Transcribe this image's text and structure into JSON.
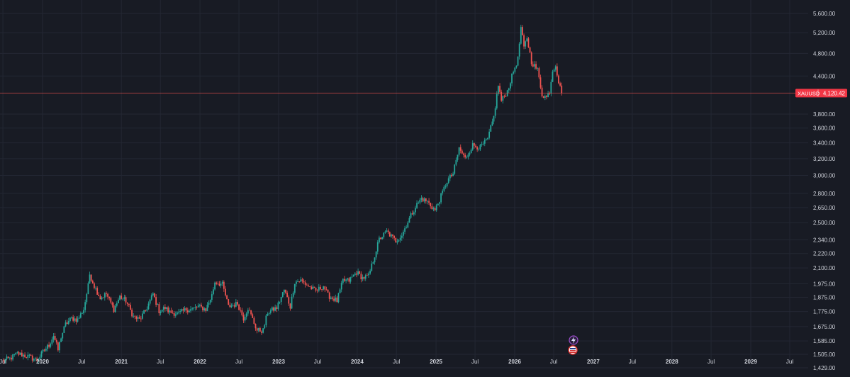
{
  "colors": {
    "background": "#181b24",
    "grid": "#232733",
    "up": "#26a69a",
    "down": "#ef5350",
    "price_line": "#ef5350",
    "axis_text": "#d1d4dc",
    "badge_bg": "#f23645",
    "badge_text": "#ffffff"
  },
  "icons": [
    "flash-icon",
    "flag-icon"
  ],
  "chart_data": {
    "type": "candlestick",
    "symbol_badge": "XAUUSD",
    "last_price": 4120.42,
    "last_price_label": "4,120.42",
    "y_scale": "log",
    "ylim": [
      1395,
      5640
    ],
    "y_ticks": [
      {
        "value": 5600,
        "label": "5,600.00"
      },
      {
        "value": 5200,
        "label": "5,200.00"
      },
      {
        "value": 4800,
        "label": "4,800.00"
      },
      {
        "value": 4400,
        "label": "4,400.00"
      },
      {
        "value": 3800,
        "label": "3,800.00"
      },
      {
        "value": 3600,
        "label": "3,600.00"
      },
      {
        "value": 3400,
        "label": "3,400.00"
      },
      {
        "value": 3200,
        "label": "3,200.00"
      },
      {
        "value": 3000,
        "label": "3,000.00"
      },
      {
        "value": 2800,
        "label": "2,800.00"
      },
      {
        "value": 2650,
        "label": "2,650.00"
      },
      {
        "value": 2500,
        "label": "2,500.00"
      },
      {
        "value": 2340,
        "label": "2,340.00"
      },
      {
        "value": 2220,
        "label": "2,220.00"
      },
      {
        "value": 2100,
        "label": "2,100.00"
      },
      {
        "value": 1975,
        "label": "1,975.00"
      },
      {
        "value": 1875,
        "label": "1,875.00"
      },
      {
        "value": 1775,
        "label": "1,775.00"
      },
      {
        "value": 1675,
        "label": "1,675.00"
      },
      {
        "value": 1585,
        "label": "1,585.00"
      },
      {
        "value": 1505,
        "label": "1,505.00"
      },
      {
        "value": 1429,
        "label": "1,429.00"
      }
    ],
    "xlim": [
      "2019-06-15",
      "2029-12-01"
    ],
    "x_ticks": [
      {
        "date": "2019-07-01",
        "label": "Jul"
      },
      {
        "date": "2020-01-01",
        "label": "2020"
      },
      {
        "date": "2020-07-01",
        "label": "Jul"
      },
      {
        "date": "2021-01-01",
        "label": "2021"
      },
      {
        "date": "2021-07-01",
        "label": "Jul"
      },
      {
        "date": "2022-01-01",
        "label": "2022"
      },
      {
        "date": "2022-07-01",
        "label": "Jul"
      },
      {
        "date": "2023-01-01",
        "label": "2023"
      },
      {
        "date": "2023-07-01",
        "label": "Jul"
      },
      {
        "date": "2024-01-01",
        "label": "2024"
      },
      {
        "date": "2024-07-01",
        "label": "Jul"
      },
      {
        "date": "2025-01-01",
        "label": "2025"
      },
      {
        "date": "2025-07-01",
        "label": "Jul"
      },
      {
        "date": "2026-01-01",
        "label": "2026"
      },
      {
        "date": "2026-07-01",
        "label": "Jul"
      },
      {
        "date": "2027-01-01",
        "label": "2027"
      },
      {
        "date": "2027-07-01",
        "label": "Jul"
      },
      {
        "date": "2028-01-01",
        "label": "2028"
      },
      {
        "date": "2028-07-01",
        "label": "Jul"
      },
      {
        "date": "2029-01-01",
        "label": "2029"
      },
      {
        "date": "2029-07-01",
        "label": "Jul"
      }
    ],
    "grid": true,
    "weekly_closes": [
      [
        "2019-06-28",
        1470
      ],
      [
        "2019-08-02",
        1480
      ],
      [
        "2019-09-06",
        1510
      ],
      [
        "2019-10-04",
        1500
      ],
      [
        "2019-11-01",
        1490
      ],
      [
        "2019-12-06",
        1470
      ],
      [
        "2020-01-03",
        1520
      ],
      [
        "2020-01-31",
        1560
      ],
      [
        "2020-02-21",
        1620
      ],
      [
        "2020-03-13",
        1530
      ],
      [
        "2020-03-27",
        1610
      ],
      [
        "2020-04-17",
        1690
      ],
      [
        "2020-05-15",
        1730
      ],
      [
        "2020-06-12",
        1720
      ],
      [
        "2020-07-10",
        1790
      ],
      [
        "2020-07-31",
        1960
      ],
      [
        "2020-08-07",
        2050
      ],
      [
        "2020-08-28",
        1960
      ],
      [
        "2020-09-25",
        1870
      ],
      [
        "2020-10-23",
        1900
      ],
      [
        "2020-11-27",
        1790
      ],
      [
        "2020-12-25",
        1880
      ],
      [
        "2021-01-22",
        1850
      ],
      [
        "2021-02-26",
        1740
      ],
      [
        "2021-03-26",
        1720
      ],
      [
        "2021-04-23",
        1780
      ],
      [
        "2021-05-28",
        1900
      ],
      [
        "2021-06-25",
        1780
      ],
      [
        "2021-07-23",
        1800
      ],
      [
        "2021-08-13",
        1770
      ],
      [
        "2021-09-24",
        1760
      ],
      [
        "2021-10-29",
        1790
      ],
      [
        "2021-11-26",
        1790
      ],
      [
        "2021-12-24",
        1810
      ],
      [
        "2022-01-28",
        1790
      ],
      [
        "2022-02-25",
        1890
      ],
      [
        "2022-03-11",
        1990
      ],
      [
        "2022-04-15",
        1970
      ],
      [
        "2022-05-13",
        1810
      ],
      [
        "2022-06-24",
        1830
      ],
      [
        "2022-07-22",
        1730
      ],
      [
        "2022-08-12",
        1800
      ],
      [
        "2022-09-23",
        1650
      ],
      [
        "2022-10-21",
        1650
      ],
      [
        "2022-11-11",
        1770
      ],
      [
        "2022-12-23",
        1800
      ],
      [
        "2023-01-27",
        1930
      ],
      [
        "2023-02-24",
        1810
      ],
      [
        "2023-03-17",
        1990
      ],
      [
        "2023-04-14",
        2000
      ],
      [
        "2023-05-26",
        1950
      ],
      [
        "2023-06-23",
        1920
      ],
      [
        "2023-07-28",
        1960
      ],
      [
        "2023-08-18",
        1890
      ],
      [
        "2023-09-29",
        1850
      ],
      [
        "2023-10-27",
        2000
      ],
      [
        "2023-11-24",
        2000
      ],
      [
        "2023-12-29",
        2065
      ],
      [
        "2024-01-26",
        2020
      ],
      [
        "2024-02-23",
        2035
      ],
      [
        "2024-03-15",
        2160
      ],
      [
        "2024-04-12",
        2345
      ],
      [
        "2024-05-17",
        2415
      ],
      [
        "2024-06-28",
        2330
      ],
      [
        "2024-07-26",
        2385
      ],
      [
        "2024-08-23",
        2510
      ],
      [
        "2024-09-27",
        2660
      ],
      [
        "2024-10-25",
        2745
      ],
      [
        "2024-11-22",
        2710
      ],
      [
        "2024-12-27",
        2620
      ],
      [
        "2025-01-24",
        2770
      ],
      [
        "2025-02-21",
        2935
      ],
      [
        "2025-03-21",
        3020
      ],
      [
        "2025-04-18",
        3330
      ],
      [
        "2025-05-16",
        3200
      ],
      [
        "2025-06-20",
        3370
      ],
      [
        "2025-07-25",
        3340
      ],
      [
        "2025-08-29",
        3450
      ],
      [
        "2025-09-26",
        3760
      ],
      [
        "2025-10-17",
        4250
      ],
      [
        "2025-10-31",
        4000
      ],
      [
        "2025-11-28",
        4150
      ],
      [
        "2025-12-26",
        4480
      ],
      [
        "2026-01-16",
        4700
      ],
      [
        "2026-01-30",
        5300
      ],
      [
        "2026-02-13",
        4900
      ],
      [
        "2026-02-27",
        5100
      ],
      [
        "2026-03-20",
        4650
      ],
      [
        "2026-04-17",
        4500
      ],
      [
        "2026-05-08",
        4100
      ],
      [
        "2026-05-29",
        4050
      ],
      [
        "2026-06-12",
        4150
      ],
      [
        "2026-06-26",
        4500
      ],
      [
        "2026-07-10",
        4600
      ],
      [
        "2026-07-24",
        4300
      ],
      [
        "2026-08-07",
        4120
      ]
    ]
  }
}
